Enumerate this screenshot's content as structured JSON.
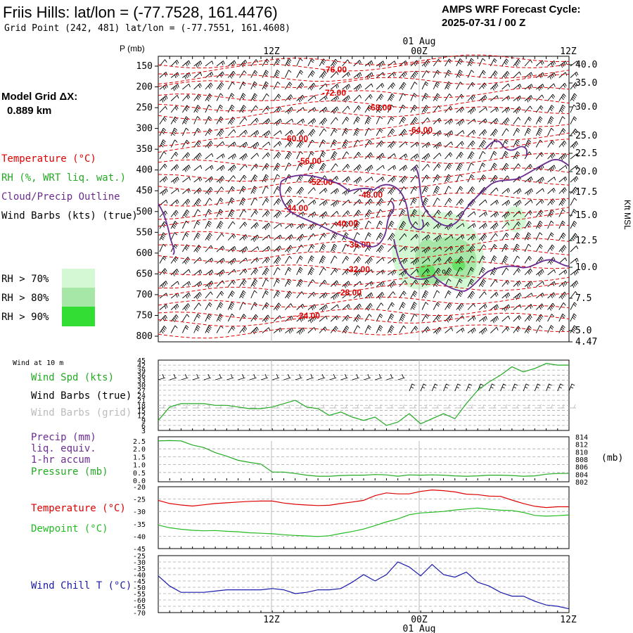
{
  "header": {
    "title": "Friis Hills:  lat/lon = (-77.7528, 161.4476)",
    "grid_point": "Grid Point (242, 481) lat/lon = (-77.7551, 161.4608)",
    "cycle_label": "AMPS WRF Forecast Cycle:",
    "cycle_value": "2025-07-31 / 00  Z",
    "grid_dx_label": "Model Grid ΔX:",
    "grid_dx_value": "0.889 km"
  },
  "time_axis": {
    "top_labels": [
      "12Z",
      "00Z",
      "12Z"
    ],
    "date_label": "01 Aug",
    "bottom_labels": [
      "12Z",
      "00Z",
      "12Z"
    ]
  },
  "legend_left": {
    "temperature": "Temperature (°C)",
    "rh": "RH (%, WRT liq. wat.)",
    "cloud": "Cloud/Precip Outline",
    "wind": "Wind Barbs (kts) (true)",
    "rh70": "RH > 70%",
    "rh80": "RH > 80%",
    "rh90": "RH > 90%"
  },
  "colors": {
    "temp": "#dd0000",
    "cloud": "#6a2c91",
    "rh": "#22aa22",
    "rh70": "#d4f7d4",
    "rh80": "#a6e6a6",
    "rh90": "#33dd33",
    "dew": "#22bb22",
    "chill": "#1a1aaa",
    "precip": "#6a2c91",
    "grid_barb": "#bbbbbb"
  },
  "chart_data": [
    {
      "type": "line",
      "title": "",
      "ylabel": "P (mb)",
      "y_ticks": [
        150,
        200,
        250,
        300,
        350,
        400,
        450,
        500,
        550,
        600,
        650,
        700,
        750,
        800
      ],
      "right_ticks": [
        "40.0",
        "35.0",
        "30.0",
        "25.0",
        "22.5",
        "20.0",
        "17.5",
        "15.0",
        "12.5",
        "10.0",
        "7.5",
        "5.0",
        "4.47"
      ],
      "right_label": "Kft MSL",
      "temp_contour_labels": [
        "-76.00",
        "-72.00",
        "-68.00",
        "-64.00",
        "-60.00",
        "-56.00",
        "-52.00",
        "-48.00",
        "-44.00",
        "-40.00",
        "-36.00",
        "-32.00",
        "-28.00",
        "-24.00"
      ],
      "mslp_marker": "o"
    },
    {
      "type": "line",
      "title": "Wind at 10 m",
      "series_labels": [
        "Wind Spd (kts)",
        "Wind Barbs (true)",
        "Wind Barbs (grid)"
      ],
      "y_ticks": [
        "45",
        "42",
        "39",
        "36",
        "33",
        "30",
        "27",
        "24",
        "21",
        "18",
        "15",
        "12",
        "9",
        "6",
        "3"
      ],
      "ylim": [
        0,
        45
      ],
      "x": [
        0,
        1,
        2,
        3,
        4,
        5,
        6,
        7,
        8,
        9,
        10,
        11,
        12,
        13,
        14,
        15,
        16,
        17,
        18,
        19,
        20,
        21,
        22,
        23,
        24,
        25,
        26,
        27,
        28,
        29,
        30,
        31,
        32,
        33,
        34,
        35,
        36
      ],
      "wind_speed": [
        9,
        17,
        19,
        19,
        19,
        18,
        18,
        17,
        16,
        16,
        17,
        19,
        21,
        17,
        16,
        12,
        14,
        11,
        9,
        11,
        6,
        8,
        13,
        7,
        10,
        13,
        10,
        19,
        27,
        32,
        36,
        41,
        38,
        40,
        43,
        42,
        42
      ]
    },
    {
      "type": "line",
      "title": "",
      "series_labels": [
        "Precip (mm)",
        "liq. equiv.",
        "1-hr accum",
        "Pressure (mb)"
      ],
      "y_ticks": [
        "2.5",
        "2.0",
        "1.5",
        "1.0",
        "0.5",
        "0.0"
      ],
      "right_ticks": [
        "814",
        "812",
        "810",
        "808",
        "806",
        "804",
        "802"
      ],
      "right_unit": "(mb)",
      "ylim": [
        802,
        815
      ],
      "x": [
        0,
        1,
        2,
        3,
        4,
        5,
        6,
        7,
        8,
        9,
        10,
        11,
        12,
        13,
        14,
        15,
        16,
        17,
        18,
        19,
        20,
        21,
        22,
        23,
        24,
        25,
        26,
        27,
        28,
        29,
        30,
        31,
        32,
        33,
        34,
        35,
        36
      ],
      "pressure": [
        813.8,
        813.9,
        813.8,
        812.6,
        811.9,
        810.4,
        809.4,
        808.2,
        807.6,
        807.1,
        804.8,
        804.8,
        804.4,
        803.9,
        803.6,
        803.6,
        803.8,
        803.9,
        803.9,
        804.1,
        804.0,
        803.6,
        804.0,
        803.9,
        804.0,
        803.9,
        803.7,
        803.6,
        803.7,
        803.9,
        803.9,
        803.8,
        803.6,
        803.7,
        804.2,
        804.4,
        804.4
      ]
    },
    {
      "type": "line",
      "title": "",
      "series_labels": [
        "Temperature (°C)",
        "Dewpoint (°C)"
      ],
      "y_ticks": [
        "-20",
        "-25",
        "-30",
        "-35",
        "-40",
        "-45"
      ],
      "ylim": [
        -45,
        -20
      ],
      "x": [
        0,
        1,
        2,
        3,
        4,
        5,
        6,
        7,
        8,
        9,
        10,
        11,
        12,
        13,
        14,
        15,
        16,
        17,
        18,
        19,
        20,
        21,
        22,
        23,
        24,
        25,
        26,
        27,
        28,
        29,
        30,
        31,
        32,
        33,
        34,
        35,
        36
      ],
      "temperature": [
        -25.5,
        -26.8,
        -27.4,
        -27.8,
        -27.3,
        -26.8,
        -26.5,
        -26.2,
        -25.9,
        -25.8,
        -25.8,
        -26.6,
        -27.1,
        -27.4,
        -27.6,
        -27.5,
        -26.8,
        -26.2,
        -25.5,
        -23.6,
        -22.5,
        -22.9,
        -22.9,
        -21.9,
        -21.3,
        -21.6,
        -22.1,
        -23.0,
        -23.2,
        -23.8,
        -23.9,
        -25.4,
        -26.8,
        -27.9,
        -28.4,
        -28.1,
        -28.1
      ],
      "dewpoint": [
        -35.5,
        -36.6,
        -37.2,
        -37.6,
        -37.8,
        -37.7,
        -38.0,
        -38.2,
        -38.6,
        -38.8,
        -39.0,
        -39.4,
        -39.7,
        -39.9,
        -40.1,
        -39.8,
        -38.9,
        -38.1,
        -37.1,
        -35.7,
        -34.2,
        -33.0,
        -31.3,
        -30.6,
        -30.3,
        -30.0,
        -29.4,
        -29.0,
        -28.6,
        -29.1,
        -29.5,
        -29.6,
        -30.4,
        -31.6,
        -31.9,
        -31.7,
        -31.4
      ]
    },
    {
      "type": "line",
      "title": "",
      "series_labels": [
        "Wind Chill T (°C)"
      ],
      "y_ticks": [
        "-25",
        "-30",
        "-35",
        "-40",
        "-45",
        "-50",
        "-55",
        "-60",
        "-65",
        "-70"
      ],
      "ylim": [
        -70,
        -25
      ],
      "x": [
        0,
        1,
        2,
        3,
        4,
        5,
        6,
        7,
        8,
        9,
        10,
        11,
        12,
        13,
        14,
        15,
        16,
        17,
        18,
        19,
        20,
        21,
        22,
        23,
        24,
        25,
        26,
        27,
        28,
        29,
        30,
        31,
        32,
        33,
        34,
        35,
        36
      ],
      "wind_chill": [
        -41,
        -49,
        -54,
        -54,
        -54,
        -53,
        -52,
        -52,
        -52,
        -52,
        -51,
        -52,
        -55,
        -54,
        -52,
        -52,
        -51,
        -46,
        -40,
        -45,
        -40,
        -30,
        -34,
        -41,
        -32,
        -40,
        -42,
        -38,
        -46,
        -49,
        -54,
        -57,
        -57,
        -61,
        -64,
        -65,
        -67
      ]
    }
  ]
}
